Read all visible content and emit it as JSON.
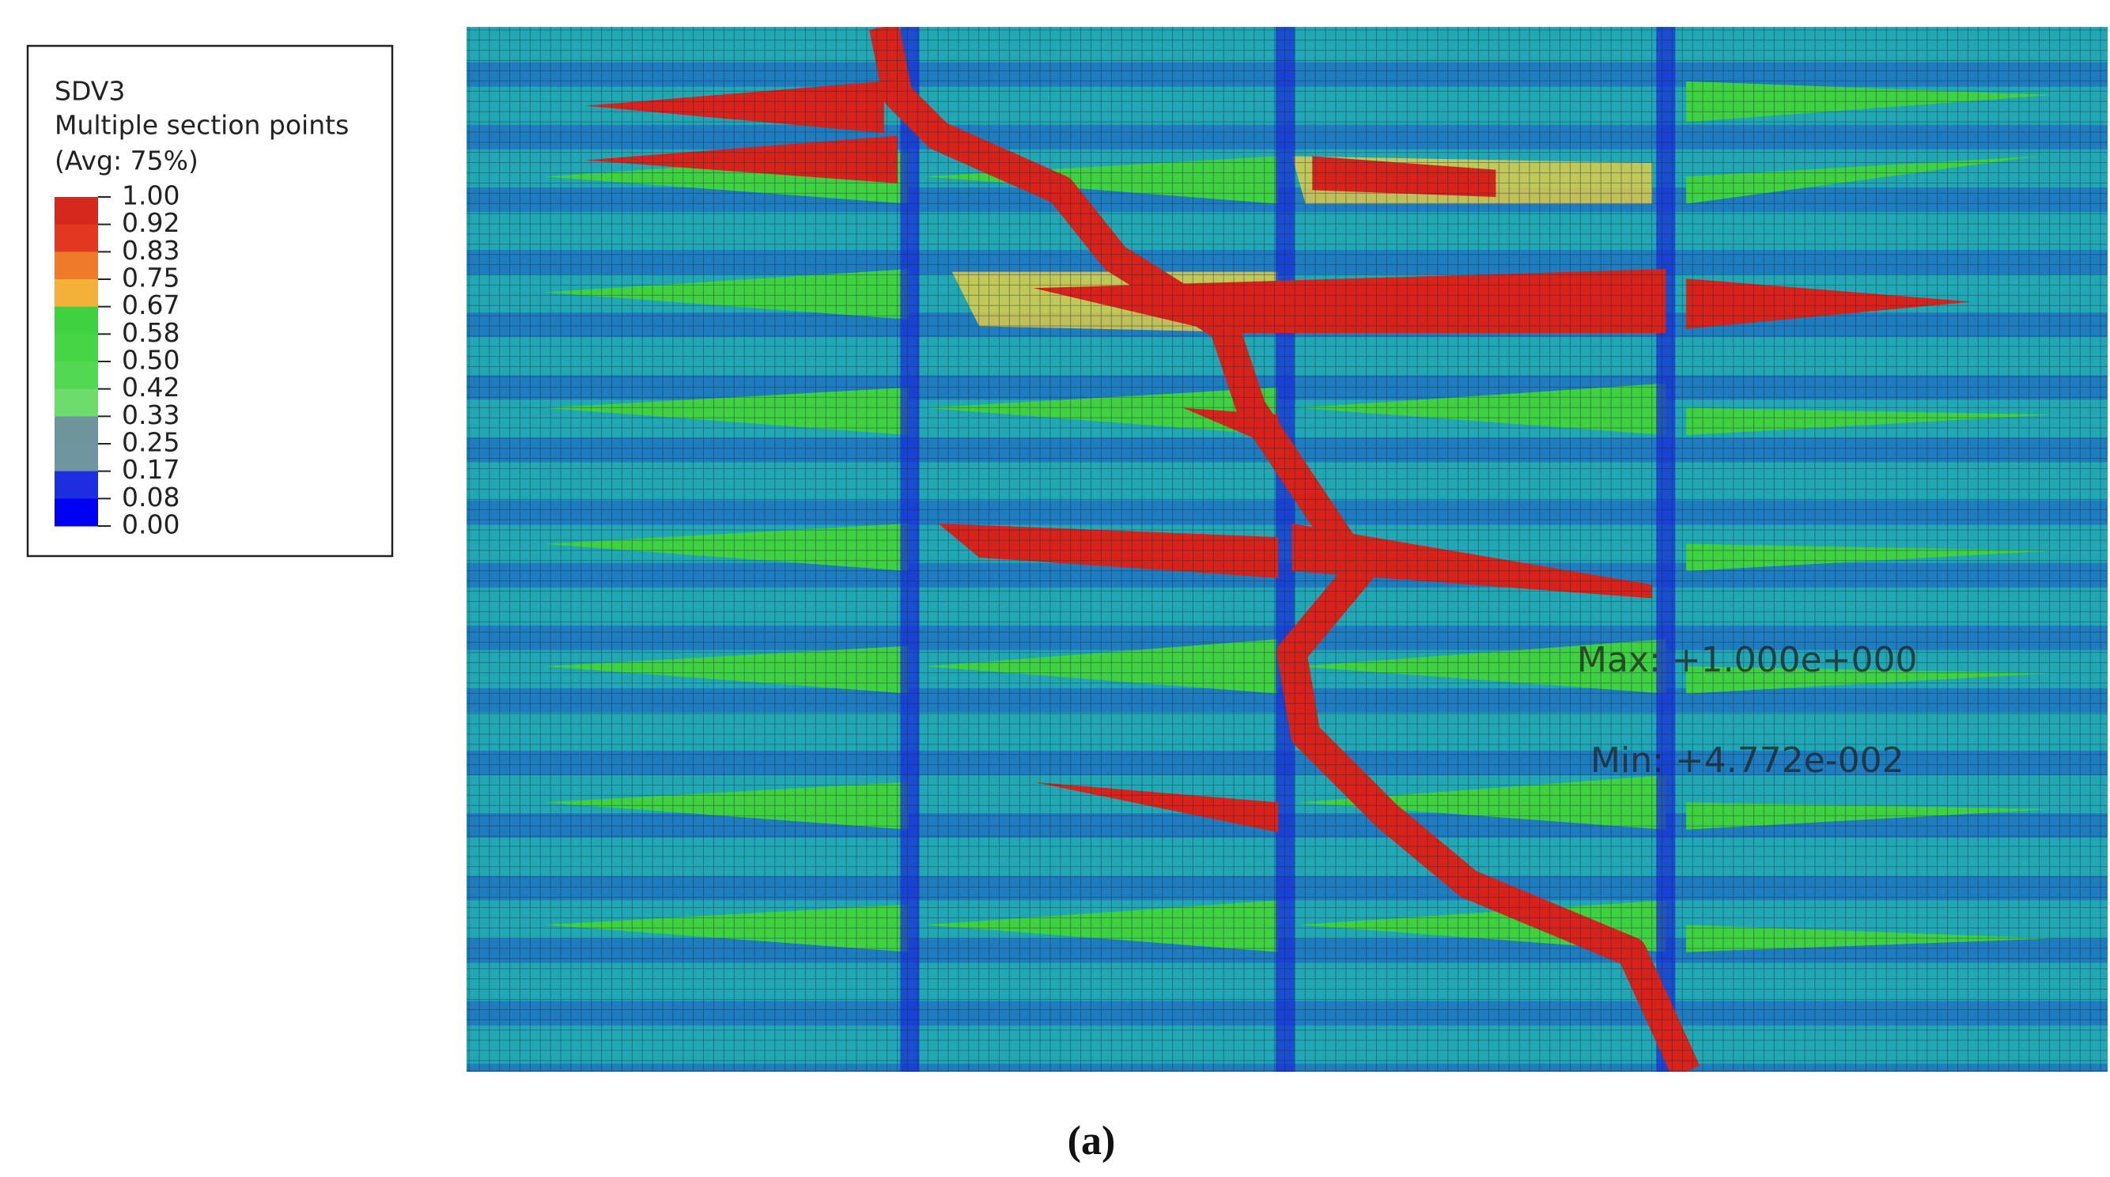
{
  "legend": {
    "lines": [
      "SDV3",
      "Multiple section points",
      "(Avg: 75%)"
    ],
    "levels": [
      "1.00",
      "0.92",
      "0.83",
      "0.75",
      "0.67",
      "0.58",
      "0.50",
      "0.42",
      "0.33",
      "0.25",
      "0.17",
      "0.08",
      "0.00"
    ],
    "colors": [
      "#d7281e",
      "#e2381f",
      "#ee7a2a",
      "#f4b13a",
      "#3fd13f",
      "#45d545",
      "#52d852",
      "#6cdc6c",
      "#6e949c",
      "#6f96a0",
      "#1c2ee0",
      "#0000f5"
    ]
  },
  "annotations": {
    "max": "Max: +1.000e+000",
    "min": "Min: +4.772e-002"
  },
  "caption": "(a)"
}
